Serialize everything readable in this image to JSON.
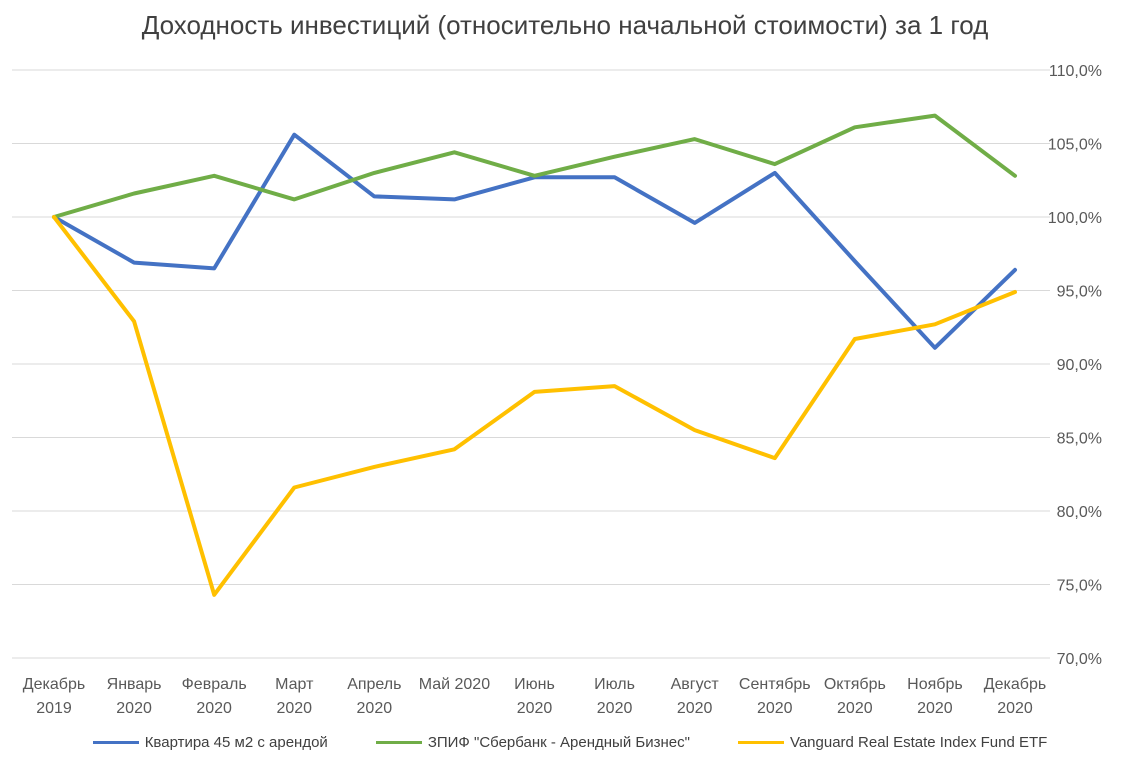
{
  "chart_data": {
    "type": "line",
    "title": "Доходность инвестиций  (относительно начальной стоимости) за 1 год",
    "categories": [
      [
        "Декабрь",
        "2019"
      ],
      [
        "Январь",
        "2020"
      ],
      [
        "Февраль",
        "2020"
      ],
      [
        "Март",
        "2020"
      ],
      [
        "Апрель",
        "2020"
      ],
      [
        "Май 2020",
        ""
      ],
      [
        "Июнь",
        "2020"
      ],
      [
        "Июль",
        "2020"
      ],
      [
        "Август",
        "2020"
      ],
      [
        "Сентябрь",
        "2020"
      ],
      [
        "Октябрь",
        "2020"
      ],
      [
        "Ноябрь",
        "2020"
      ],
      [
        "Декабрь",
        "2020"
      ]
    ],
    "y_axis": {
      "side": "right",
      "min": 70,
      "max": 110,
      "step": 5,
      "tick_labels": [
        "70,0%",
        "75,0%",
        "80,0%",
        "85,0%",
        "90,0%",
        "95,0%",
        "100,0%",
        "105,0%",
        "110,0%"
      ]
    },
    "grid": true,
    "legend_position": "bottom",
    "series": [
      {
        "name": "Квартира 45 м2 с арендой",
        "color": "#4472C4",
        "values": [
          100.0,
          96.9,
          96.5,
          105.6,
          101.4,
          101.2,
          102.7,
          102.7,
          99.6,
          103.0,
          97.0,
          91.1,
          96.4
        ]
      },
      {
        "name": "ЗПИФ \"Сбербанк - Арендный Бизнес\"",
        "color": "#70AD47",
        "values": [
          100.0,
          101.6,
          102.8,
          101.2,
          103.0,
          104.4,
          102.8,
          104.1,
          105.3,
          103.6,
          106.1,
          106.9,
          102.8
        ]
      },
      {
        "name": "Vanguard Real Estate Index Fund ETF",
        "color": "#FFC000",
        "values": [
          100.0,
          92.9,
          74.3,
          81.6,
          83.0,
          84.2,
          88.1,
          88.5,
          85.5,
          83.6,
          91.7,
          92.7,
          94.9
        ]
      }
    ]
  }
}
